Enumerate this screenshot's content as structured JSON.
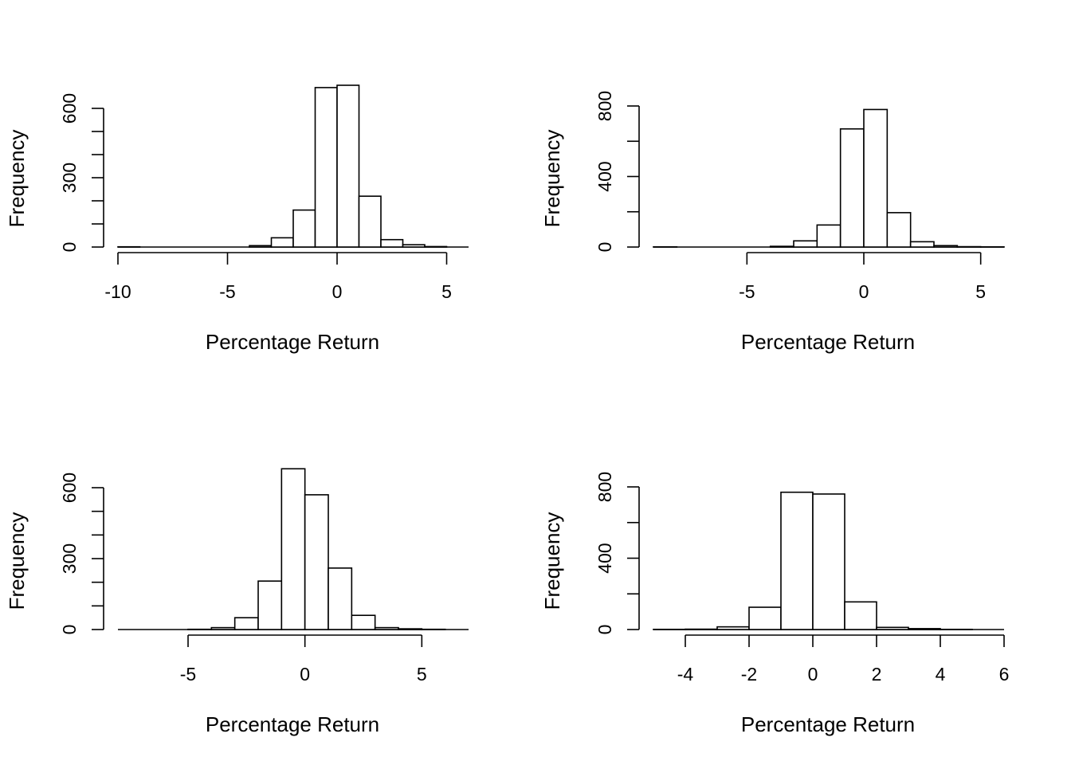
{
  "chart_data": [
    {
      "type": "bar",
      "xlabel": "Percentage Return",
      "ylabel": "Frequency",
      "xlim": [
        -10,
        6
      ],
      "ylim": [
        0,
        700
      ],
      "x_ticks": [
        "-10",
        "-5",
        "0",
        "5"
      ],
      "y_ticks": [
        "0",
        "300",
        "600"
      ],
      "bin_edges": [
        -10,
        -9,
        -8,
        -7,
        -6,
        -5,
        -4,
        -3,
        -2,
        -1,
        0,
        1,
        2,
        3,
        4,
        5
      ],
      "values": [
        1,
        0,
        0,
        0,
        0,
        0,
        6,
        40,
        160,
        690,
        700,
        220,
        32,
        10,
        2
      ]
    },
    {
      "type": "bar",
      "xlabel": "Percentage Return",
      "ylabel": "Frequency",
      "xlim": [
        -9,
        6
      ],
      "ylim": [
        0,
        800
      ],
      "x_ticks": [
        "-5",
        "0",
        "5"
      ],
      "y_ticks": [
        "0",
        "400",
        "800"
      ],
      "bin_edges": [
        -9,
        -8,
        -7,
        -6,
        -5,
        -4,
        -3,
        -2,
        -1,
        0,
        1,
        2,
        3,
        4,
        5,
        6
      ],
      "values": [
        1,
        0,
        0,
        0,
        0,
        4,
        35,
        125,
        670,
        780,
        195,
        30,
        8,
        2,
        1
      ]
    },
    {
      "type": "bar",
      "xlabel": "Percentage Return",
      "ylabel": "Frequency",
      "xlim": [
        -8,
        7
      ],
      "ylim": [
        0,
        700
      ],
      "x_ticks": [
        "-5",
        "0",
        "5"
      ],
      "y_ticks": [
        "0",
        "300",
        "600"
      ],
      "bin_edges": [
        -8,
        -7,
        -6,
        -5,
        -4,
        -3,
        -2,
        -1,
        0,
        1,
        2,
        3,
        4,
        5,
        6,
        7
      ],
      "values": [
        0,
        0,
        0,
        1,
        8,
        50,
        205,
        680,
        570,
        260,
        60,
        8,
        3,
        1,
        0
      ]
    },
    {
      "type": "bar",
      "xlabel": "Percentage Return",
      "ylabel": "Frequency",
      "xlim": [
        -5,
        6
      ],
      "ylim": [
        0,
        800
      ],
      "x_ticks": [
        "-4",
        "-2",
        "0",
        "2",
        "4",
        "6"
      ],
      "y_ticks": [
        "0",
        "400",
        "800"
      ],
      "bin_edges": [
        -5,
        -4,
        -3,
        -2,
        -1,
        0,
        1,
        2,
        3,
        4,
        5,
        6
      ],
      "values": [
        1,
        2,
        15,
        125,
        770,
        760,
        155,
        12,
        5,
        1,
        0
      ]
    }
  ]
}
